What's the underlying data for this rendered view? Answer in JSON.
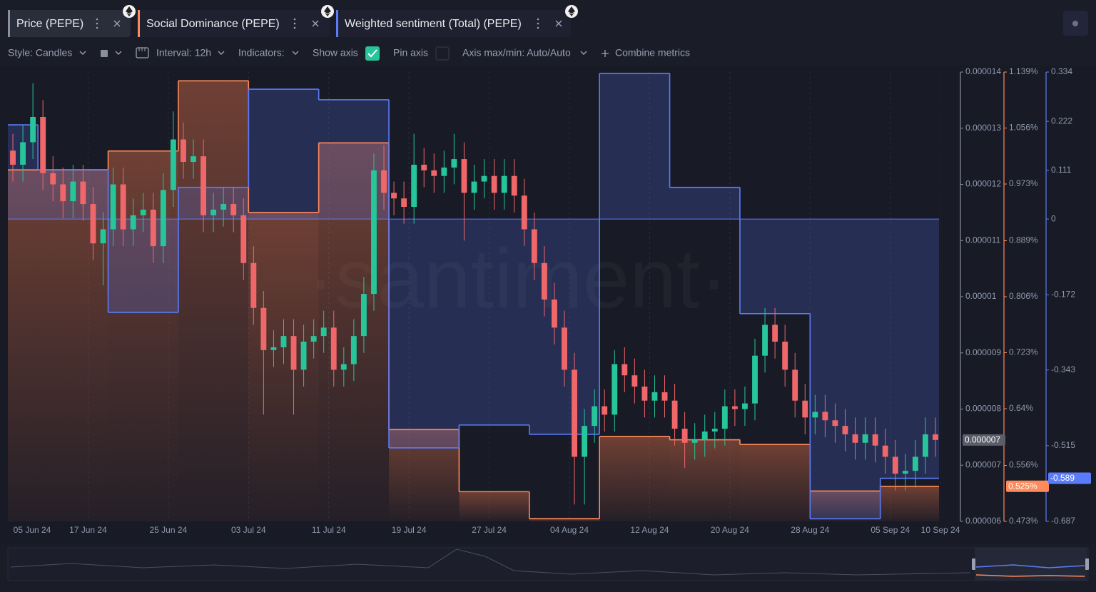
{
  "toolbar": {
    "style": "Style: Candles",
    "interval": "Interval: 12h",
    "indicators": "Indicators:",
    "show_axis": "Show axis",
    "pin_axis": "Pin axis",
    "axis_range": "Axis max/min: Auto/Auto",
    "combine": "Combine metrics"
  },
  "chart_data": {
    "type": "candlestick",
    "watermark": "·santiment·",
    "x": [
      "2024-06-09",
      "2024-06-10",
      "2024-06-11",
      "2024-06-12",
      "2024-06-13",
      "2024-06-14",
      "2024-06-15",
      "2024-06-16",
      "2024-06-17",
      "2024-06-18",
      "2024-06-19",
      "2024-06-20",
      "2024-06-21",
      "2024-06-22",
      "2024-06-23",
      "2024-06-24",
      "2024-06-25",
      "2024-06-26",
      "2024-06-27",
      "2024-06-28",
      "2024-06-29",
      "2024-06-30",
      "2024-07-01",
      "2024-07-02",
      "2024-07-03",
      "2024-07-04",
      "2024-07-05",
      "2024-07-06",
      "2024-07-07",
      "2024-07-08",
      "2024-07-09",
      "2024-07-10",
      "2024-07-11",
      "2024-07-12",
      "2024-07-13",
      "2024-07-14",
      "2024-07-15",
      "2024-07-16",
      "2024-07-17",
      "2024-07-18",
      "2024-07-19",
      "2024-07-20",
      "2024-07-21",
      "2024-07-22",
      "2024-07-23",
      "2024-07-24",
      "2024-07-25",
      "2024-07-26",
      "2024-07-27",
      "2024-07-28",
      "2024-07-29",
      "2024-07-30",
      "2024-07-31",
      "2024-08-01",
      "2024-08-02",
      "2024-08-03",
      "2024-08-04",
      "2024-08-05",
      "2024-08-06",
      "2024-08-07",
      "2024-08-08",
      "2024-08-09",
      "2024-08-10",
      "2024-08-11",
      "2024-08-12",
      "2024-08-13",
      "2024-08-14",
      "2024-08-15",
      "2024-08-16",
      "2024-08-17",
      "2024-08-18",
      "2024-08-19",
      "2024-08-20",
      "2024-08-21",
      "2024-08-22",
      "2024-08-23",
      "2024-08-24",
      "2024-08-25",
      "2024-08-26",
      "2024-08-27",
      "2024-08-28",
      "2024-08-29",
      "2024-08-30",
      "2024-08-31",
      "2024-09-01",
      "2024-09-02",
      "2024-09-03",
      "2024-09-04",
      "2024-09-05",
      "2024-09-06",
      "2024-09-07",
      "2024-09-08",
      "2024-09-09"
    ],
    "series": [
      {
        "name": "Price (PEPE)",
        "up_color": "#26c59a",
        "down_color": "#f0676a",
        "color": "#8a8f9e",
        "open": [
          1.26e-05,
          1.235e-05,
          1.275e-05,
          1.32e-05,
          1.22e-05,
          1.2e-05,
          1.17e-05,
          1.205e-05,
          1.165e-05,
          1.095e-05,
          1.12e-05,
          1.2e-05,
          1.12e-05,
          1.145e-05,
          1.155e-05,
          1.09e-05,
          1.19e-05,
          1.28e-05,
          1.24e-05,
          1.25e-05,
          1.145e-05,
          1.155e-05,
          1.165e-05,
          1.145e-05,
          1.06e-05,
          9.8e-06,
          9.05e-06,
          9.1e-06,
          9.3e-06,
          8.7e-06,
          9.2e-06,
          9.3e-06,
          9.45e-06,
          8.7e-06,
          8.8e-06,
          9.3e-06,
          1.005e-05,
          1.225e-05,
          1.185e-05,
          1.175e-05,
          1.16e-05,
          1.235e-05,
          1.225e-05,
          1.215e-05,
          1.23e-05,
          1.245e-05,
          1.185e-05,
          1.205e-05,
          1.215e-05,
          1.185e-05,
          1.215e-05,
          1.18e-05,
          1.12e-05,
          1.06e-05,
          9.95e-06,
          9.45e-06,
          8.7e-06,
          7.15e-06,
          7.7e-06,
          8.05e-06,
          7.9e-06,
          8.8e-06,
          8.6e-06,
          8.4e-06,
          8.15e-06,
          8.3e-06,
          8.15e-06,
          7.65e-06,
          7.4e-06,
          7.45e-06,
          7.6e-06,
          7.65e-06,
          8.05e-06,
          8e-06,
          8.1e-06,
          8.95e-06,
          9.5e-06,
          9.2e-06,
          8.7e-06,
          8.15e-06,
          7.85e-06,
          7.95e-06,
          7.8e-06,
          7.7e-06,
          7.55e-06,
          7.4e-06,
          7.55e-06,
          7.35e-06,
          7.15e-06,
          6.85e-06,
          6.9e-06,
          7.15e-06,
          7.55e-06
        ],
        "high": [
          1.29e-05,
          1.305e-05,
          1.38e-05,
          1.35e-05,
          1.25e-05,
          1.23e-05,
          1.235e-05,
          1.235e-05,
          1.195e-05,
          1.15e-05,
          1.23e-05,
          1.23e-05,
          1.175e-05,
          1.185e-05,
          1.185e-05,
          1.22e-05,
          1.33e-05,
          1.31e-05,
          1.28e-05,
          1.28e-05,
          1.185e-05,
          1.195e-05,
          1.195e-05,
          1.175e-05,
          1.09e-05,
          1.01e-05,
          9.4e-06,
          9.6e-06,
          9.6e-06,
          9.5e-06,
          9.6e-06,
          9.75e-06,
          9.75e-06,
          9.1e-06,
          9.6e-06,
          1.035e-05,
          1.255e-05,
          1.27e-05,
          1.205e-05,
          1.205e-05,
          1.29e-05,
          1.265e-05,
          1.255e-05,
          1.26e-05,
          1.29e-05,
          1.275e-05,
          1.235e-05,
          1.245e-05,
          1.245e-05,
          1.245e-05,
          1.245e-05,
          1.21e-05,
          1.15e-05,
          1.09e-05,
          1.025e-05,
          9.75e-06,
          9e-06,
          8e-06,
          8.35e-06,
          8.35e-06,
          9.05e-06,
          9.1e-06,
          8.9e-06,
          8.7e-06,
          8.6e-06,
          8.6e-06,
          8.45e-06,
          7.95e-06,
          7.75e-06,
          7.9e-06,
          7.95e-06,
          8.35e-06,
          8.35e-06,
          8.4e-06,
          9.25e-06,
          9.8e-06,
          9.8e-06,
          9.5e-06,
          9e-06,
          8.45e-06,
          8.25e-06,
          8.25e-06,
          8.1e-06,
          8e-06,
          7.85e-06,
          7.85e-06,
          7.85e-06,
          7.65e-06,
          7.45e-06,
          7.2e-06,
          7.45e-06,
          7.85e-06,
          7.85e-06
        ],
        "low": [
          1.205e-05,
          1.205e-05,
          1.245e-05,
          1.19e-05,
          1.17e-05,
          1.14e-05,
          1.14e-05,
          1.135e-05,
          1.065e-05,
          1.02e-05,
          1.09e-05,
          1.09e-05,
          1.09e-05,
          1.115e-05,
          1.06e-05,
          1.06e-05,
          1.16e-05,
          1.21e-05,
          1.21e-05,
          1.115e-05,
          1.115e-05,
          1.125e-05,
          1.115e-05,
          1.03e-05,
          9.5e-06,
          7.9e-06,
          8.75e-06,
          8.8e-06,
          7.9e-06,
          8.4e-06,
          8.9e-06,
          9e-06,
          8.4e-06,
          8.4e-06,
          8.5e-06,
          9e-06,
          9.75e-06,
          1.155e-05,
          1.145e-05,
          1.13e-05,
          1.13e-05,
          1.195e-05,
          1.185e-05,
          1.185e-05,
          1.2e-05,
          1.1e-05,
          1.155e-05,
          1.175e-05,
          1.155e-05,
          1.155e-05,
          1.15e-05,
          1.09e-05,
          1.03e-05,
          9.65e-06,
          9.15e-06,
          8.4e-06,
          6.3e-06,
          6.3e-06,
          7.4e-06,
          7.6e-06,
          7.6e-06,
          8.3e-06,
          8.1e-06,
          7.85e-06,
          7.85e-06,
          7.85e-06,
          7.35e-06,
          6.95e-06,
          7.1e-06,
          7.15e-06,
          7.3e-06,
          7.35e-06,
          7.7e-06,
          7.7e-06,
          7.8e-06,
          8.65e-06,
          8.9e-06,
          8.4e-06,
          7.85e-06,
          7.55e-06,
          7.55e-06,
          7.5e-06,
          7.4e-06,
          7.25e-06,
          7.1e-06,
          7.1e-06,
          7.05e-06,
          6.85e-06,
          6.55e-06,
          6.55e-06,
          6.6e-06,
          6.85e-06,
          7.15e-06
        ],
        "close": [
          1.235e-05,
          1.275e-05,
          1.32e-05,
          1.22e-05,
          1.2e-05,
          1.17e-05,
          1.205e-05,
          1.165e-05,
          1.095e-05,
          1.12e-05,
          1.2e-05,
          1.12e-05,
          1.145e-05,
          1.155e-05,
          1.09e-05,
          1.19e-05,
          1.28e-05,
          1.24e-05,
          1.25e-05,
          1.145e-05,
          1.155e-05,
          1.165e-05,
          1.145e-05,
          1.06e-05,
          9.8e-06,
          9.05e-06,
          9.1e-06,
          9.3e-06,
          8.7e-06,
          9.2e-06,
          9.3e-06,
          9.45e-06,
          8.7e-06,
          8.8e-06,
          9.3e-06,
          1.005e-05,
          1.225e-05,
          1.185e-05,
          1.175e-05,
          1.16e-05,
          1.235e-05,
          1.225e-05,
          1.215e-05,
          1.23e-05,
          1.245e-05,
          1.185e-05,
          1.205e-05,
          1.215e-05,
          1.185e-05,
          1.215e-05,
          1.18e-05,
          1.12e-05,
          1.06e-05,
          9.95e-06,
          9.45e-06,
          8.7e-06,
          7.15e-06,
          7.7e-06,
          8.05e-06,
          7.9e-06,
          8.8e-06,
          8.6e-06,
          8.4e-06,
          8.15e-06,
          8.3e-06,
          8.15e-06,
          7.65e-06,
          7.4e-06,
          7.45e-06,
          7.6e-06,
          7.65e-06,
          8.05e-06,
          8e-06,
          8.1e-06,
          8.95e-06,
          9.5e-06,
          9.2e-06,
          8.7e-06,
          8.15e-06,
          7.85e-06,
          7.95e-06,
          7.8e-06,
          7.7e-06,
          7.55e-06,
          7.4e-06,
          7.55e-06,
          7.35e-06,
          7.15e-06,
          6.85e-06,
          6.9e-06,
          7.15e-06,
          7.55e-06,
          7.45e-06
        ],
        "last_label": {
          "value": 7.45e-06,
          "label": "0.000007"
        }
      },
      {
        "name": "Social Dominance (PEPE)",
        "type": "step",
        "axis": "y2",
        "color": "#ff8a5b",
        "x": [
          "2024-06-05",
          "2024-06-12",
          "2024-06-19",
          "2024-06-26",
          "2024-07-03",
          "2024-07-10",
          "2024-07-17",
          "2024-07-24",
          "2024-07-31",
          "2024-08-07",
          "2024-08-14",
          "2024-08-21",
          "2024-08-28",
          "2024-09-04"
        ],
        "values": [
          0.994,
          0.994,
          1.022,
          1.126,
          0.931,
          1.034,
          0.609,
          0.517,
          0.477,
          0.599,
          0.594,
          0.587,
          0.518,
          0.525
        ],
        "last_label": {
          "value": 0.525,
          "label": "0.525%"
        }
      },
      {
        "name": "Weighted sentiment (Total) (PEPE)",
        "type": "step",
        "axis": "y3",
        "color": "#5b7cfa",
        "x": [
          "2024-06-05",
          "2024-06-12",
          "2024-06-19",
          "2024-06-26",
          "2024-07-03",
          "2024-07-10",
          "2024-07-17",
          "2024-07-24",
          "2024-07-31",
          "2024-08-07",
          "2024-08-14",
          "2024-08-21",
          "2024-08-28",
          "2024-09-04"
        ],
        "values": [
          0.214,
          0.112,
          -0.212,
          0.072,
          0.295,
          0.271,
          -0.52,
          -0.468,
          -0.489,
          0.331,
          0.072,
          -0.215,
          -0.681,
          -0.589
        ]
      }
    ],
    "xlim": [
      "2024-06-09",
      "2024-09-10"
    ],
    "xticks": [
      {
        "value": "2024-06-05",
        "label": "05 Jun 24"
      },
      {
        "value": "2024-06-17",
        "label": "17 Jun 24"
      },
      {
        "value": "2024-06-25",
        "label": "25 Jun 24"
      },
      {
        "value": "2024-07-03",
        "label": "03 Jul 24"
      },
      {
        "value": "2024-07-11",
        "label": "11 Jul 24"
      },
      {
        "value": "2024-07-19",
        "label": "19 Jul 24"
      },
      {
        "value": "2024-07-27",
        "label": "27 Jul 24"
      },
      {
        "value": "2024-08-04",
        "label": "04 Aug 24"
      },
      {
        "value": "2024-08-12",
        "label": "12 Aug 24"
      },
      {
        "value": "2024-08-20",
        "label": "20 Aug 24"
      },
      {
        "value": "2024-08-28",
        "label": "28 Aug 24"
      },
      {
        "value": "2024-09-05",
        "label": "05 Sep 24"
      },
      {
        "value": "2024-09-10",
        "label": "10 Sep 24"
      }
    ],
    "ylim": [
      6e-06,
      1.4e-05
    ],
    "yticks": [
      1.4e-05,
      1.3e-05,
      1.2e-05,
      1.1e-05,
      1e-05,
      9e-06,
      8e-06,
      7e-06,
      6e-06
    ],
    "y2lim": [
      0.473,
      1.139
    ],
    "y2ticks": [
      {
        "value": 1.139,
        "label": "1.139%"
      },
      {
        "value": 1.056,
        "label": "1.056%"
      },
      {
        "value": 0.973,
        "label": "0.973%"
      },
      {
        "value": 0.889,
        "label": "0.889%"
      },
      {
        "value": 0.806,
        "label": "0.806%"
      },
      {
        "value": 0.723,
        "label": "0.723%"
      },
      {
        "value": 0.64,
        "label": "0.64%"
      },
      {
        "value": 0.556,
        "label": "0.556%"
      },
      {
        "value": 0.473,
        "label": "0.473%"
      }
    ],
    "y3lim": [
      -0.687,
      0.334
    ],
    "y3ticks": [
      0.334,
      0.222,
      0.111,
      0,
      -0.172,
      -0.343,
      -0.515,
      -0.687
    ],
    "grid": true
  }
}
